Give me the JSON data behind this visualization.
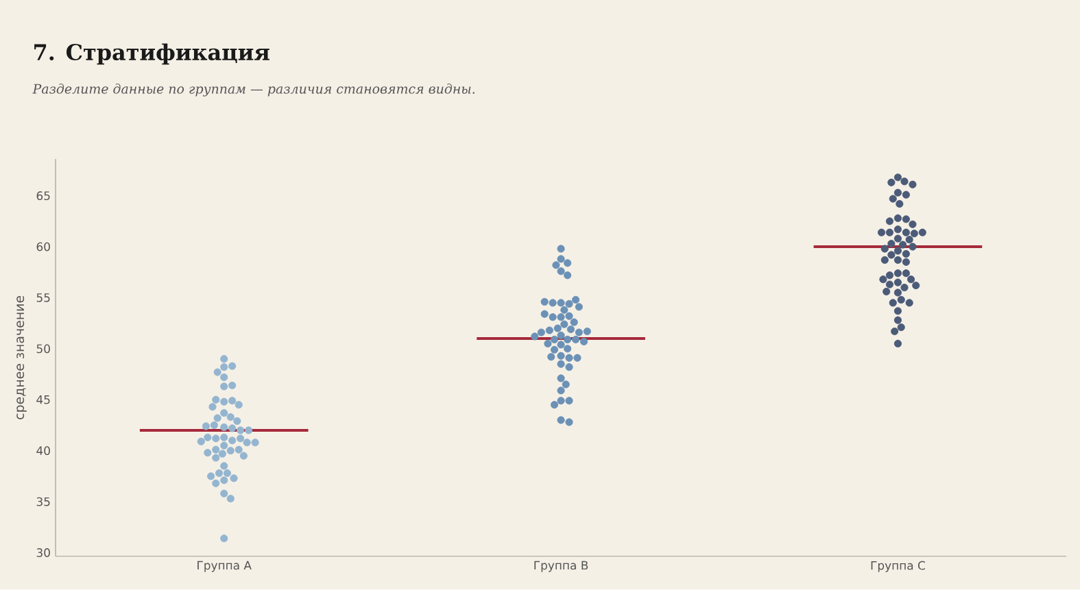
{
  "chart_data": {
    "type": "scatter",
    "title": "7. Стратификация",
    "subtitle": "Разделите данные по группам — различия становятся видны.",
    "ylabel": "среднее значение",
    "categories": [
      "Группа A",
      "Группа B",
      "Группа C"
    ],
    "ylim": [
      29.65,
      68.6
    ],
    "yticks": [
      30,
      35,
      40,
      45,
      50,
      55,
      60,
      65
    ],
    "marker": "circle",
    "series": [
      {
        "type": "scatter",
        "color": "#94b5d0",
        "x": [
          "Группа A",
          "Группа A",
          "Группа A",
          "Группа A",
          "Группа A",
          "Группа A",
          "Группа A",
          "Группа A",
          "Группа A",
          "Группа A",
          "Группа A",
          "Группа A",
          "Группа A",
          "Группа A",
          "Группа A",
          "Группа A",
          "Группа A",
          "Группа A",
          "Группа A",
          "Группа A",
          "Группа A",
          "Группа A",
          "Группа A",
          "Группа A",
          "Группа A",
          "Группа A",
          "Группа A",
          "Группа A",
          "Группа A",
          "Группа A",
          "Группа A",
          "Группа A",
          "Группа A",
          "Группа A",
          "Группа A",
          "Группа A",
          "Группа A",
          "Группа A",
          "Группа A",
          "Группа A",
          "Группа A",
          "Группа A",
          "Группа A",
          "Группа A",
          "Группа A",
          "Группа A",
          "Группа A",
          "Группа A"
        ],
        "values": [
          49.0,
          48.2,
          48.3,
          47.7,
          47.2,
          46.3,
          46.4,
          44.8,
          44.9,
          45.0,
          44.5,
          44.3,
          43.7,
          43.3,
          43.2,
          42.9,
          42.3,
          42.5,
          42.4,
          42.2,
          42.0,
          42.0,
          41.3,
          41.0,
          41.2,
          41.2,
          41.3,
          40.9,
          40.8,
          40.8,
          40.5,
          40.0,
          39.7,
          40.1,
          40.1,
          39.8,
          39.5,
          39.3,
          38.5,
          37.8,
          37.8,
          37.3,
          37.5,
          37.1,
          36.8,
          35.8,
          35.3,
          31.4
        ]
      },
      {
        "type": "scatter",
        "color": "#6b91b6",
        "x": [
          "Группа B",
          "Группа B",
          "Группа B",
          "Группа B",
          "Группа B",
          "Группа B",
          "Группа B",
          "Группа B",
          "Группа B",
          "Группа B",
          "Группа B",
          "Группа B",
          "Группа B",
          "Группа B",
          "Группа B",
          "Группа B",
          "Группа B",
          "Группа B",
          "Группа B",
          "Группа B",
          "Группа B",
          "Группа B",
          "Группа B",
          "Группа B",
          "Группа B",
          "Группа B",
          "Группа B",
          "Группа B",
          "Группа B",
          "Группа B",
          "Группа B",
          "Группа B",
          "Группа B",
          "Группа B",
          "Группа B",
          "Группа B",
          "Группа B",
          "Группа B",
          "Группа B",
          "Группа B",
          "Группа B",
          "Группа B",
          "Группа B",
          "Группа B",
          "Группа B",
          "Группа B",
          "Группа B",
          "Группа B",
          "Группа B"
        ],
        "values": [
          59.8,
          58.8,
          58.4,
          58.2,
          57.6,
          57.2,
          54.5,
          54.4,
          54.5,
          54.8,
          54.6,
          54.1,
          53.8,
          53.1,
          53.2,
          53.1,
          53.4,
          52.6,
          52.4,
          52.0,
          51.9,
          51.8,
          51.6,
          51.6,
          51.7,
          51.3,
          51.2,
          50.9,
          50.9,
          50.9,
          50.4,
          50.5,
          50.7,
          50.0,
          49.9,
          49.3,
          49.1,
          49.2,
          49.1,
          48.5,
          48.2,
          47.1,
          46.5,
          45.9,
          44.9,
          44.9,
          44.5,
          43.0,
          42.8
        ]
      },
      {
        "type": "scatter",
        "color": "#4b5b78",
        "x": [
          "Группа C",
          "Группа C",
          "Группа C",
          "Группа C",
          "Группа C",
          "Группа C",
          "Группа C",
          "Группа C",
          "Группа C",
          "Группа C",
          "Группа C",
          "Группа C",
          "Группа C",
          "Группа C",
          "Группа C",
          "Группа C",
          "Группа C",
          "Группа C",
          "Группа C",
          "Группа C",
          "Группа C",
          "Группа C",
          "Группа C",
          "Группа C",
          "Группа C",
          "Группа C",
          "Группа C",
          "Группа C",
          "Группа C",
          "Группа C",
          "Группа C",
          "Группа C",
          "Группа C",
          "Группа C",
          "Группа C",
          "Группа C",
          "Группа C",
          "Группа C",
          "Группа C",
          "Группа C",
          "Группа C",
          "Группа C",
          "Группа C",
          "Группа C",
          "Группа C",
          "Группа C",
          "Группа C",
          "Группа C",
          "Группа C"
        ],
        "values": [
          66.8,
          66.4,
          66.3,
          66.1,
          65.3,
          65.1,
          64.7,
          64.2,
          62.8,
          62.7,
          62.5,
          62.2,
          61.7,
          61.4,
          61.4,
          61.3,
          61.4,
          61.4,
          60.8,
          60.7,
          60.3,
          60.2,
          60.0,
          59.8,
          59.6,
          59.3,
          59.2,
          58.7,
          58.5,
          58.7,
          57.4,
          57.4,
          57.2,
          56.8,
          56.8,
          56.5,
          56.3,
          56.0,
          56.2,
          55.5,
          55.6,
          54.8,
          54.5,
          54.5,
          53.7,
          52.8,
          52.1,
          51.7,
          50.5
        ]
      }
    ],
    "ref_lines": [
      {
        "axis": "y",
        "value": 42,
        "color": "#a52a3a"
      },
      {
        "axis": "y",
        "value": 51,
        "color": "#a52a3a"
      },
      {
        "axis": "y",
        "value": 60,
        "color": "#a52a3a"
      }
    ]
  }
}
